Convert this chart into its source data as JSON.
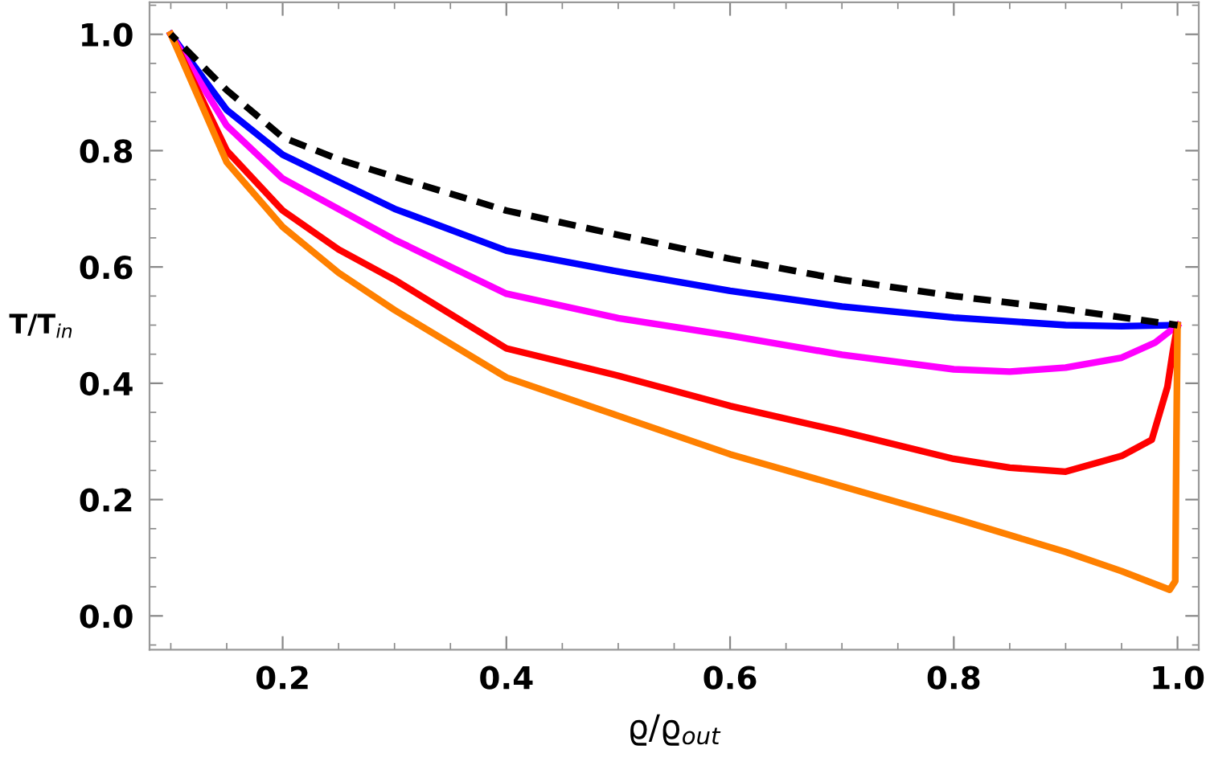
{
  "chart_data": {
    "type": "line",
    "xlabel": "ϱ/ϱ$_{out}$",
    "ylabel": "T/T$_{in}$",
    "xlim": [
      0.081,
      1.019
    ],
    "ylim": [
      -0.058,
      1.055
    ],
    "xticks": [
      0.2,
      0.4,
      0.6,
      0.8,
      {
        "value": 1,
        "label": "1.0"
      }
    ],
    "yticks": [
      {
        "value": 0,
        "label": "0.0"
      },
      0.2,
      0.4,
      0.6,
      0.8,
      {
        "value": 1,
        "label": "1.0"
      }
    ],
    "grid": false,
    "series": [
      {
        "color": "#000000",
        "line_style": "dashed",
        "x": [
          0.1,
          0.15,
          0.2,
          0.25,
          0.3,
          0.4,
          0.5,
          0.6,
          0.7,
          0.8,
          0.9,
          1.0
        ],
        "values": [
          1.0,
          0.904,
          0.823,
          0.785,
          0.755,
          0.697,
          0.655,
          0.614,
          0.578,
          0.55,
          0.527,
          0.5
        ]
      },
      {
        "color": "#0000ff",
        "x": [
          0.1,
          0.15,
          0.2,
          0.3,
          0.4,
          0.5,
          0.6,
          0.7,
          0.8,
          0.9,
          0.95,
          1.0
        ],
        "values": [
          1.0,
          0.87,
          0.793,
          0.7,
          0.628,
          0.592,
          0.559,
          0.532,
          0.513,
          0.5,
          0.498,
          0.5
        ]
      },
      {
        "color": "#ff00ff",
        "x": [
          0.1,
          0.15,
          0.2,
          0.3,
          0.4,
          0.5,
          0.6,
          0.7,
          0.8,
          0.85,
          0.9,
          0.95,
          0.98,
          1.0
        ],
        "values": [
          1.0,
          0.843,
          0.752,
          0.647,
          0.554,
          0.512,
          0.482,
          0.449,
          0.424,
          0.42,
          0.427,
          0.444,
          0.47,
          0.5
        ]
      },
      {
        "color": "#ff0000",
        "x": [
          0.1,
          0.15,
          0.2,
          0.25,
          0.3,
          0.4,
          0.5,
          0.6,
          0.7,
          0.8,
          0.85,
          0.9,
          0.95,
          0.977,
          0.991,
          0.996,
          1.0
        ],
        "values": [
          1.0,
          0.8,
          0.697,
          0.63,
          0.578,
          0.46,
          0.413,
          0.361,
          0.317,
          0.27,
          0.255,
          0.248,
          0.275,
          0.303,
          0.394,
          0.457,
          0.5
        ]
      },
      {
        "color": "#ff8000",
        "x": [
          0.1,
          0.15,
          0.2,
          0.25,
          0.3,
          0.4,
          0.5,
          0.6,
          0.7,
          0.8,
          0.9,
          0.95,
          0.993,
          0.998,
          0.999,
          1.0
        ],
        "values": [
          1.0,
          0.78,
          0.669,
          0.59,
          0.526,
          0.41,
          0.344,
          0.278,
          0.223,
          0.168,
          0.11,
          0.077,
          0.045,
          0.06,
          0.3,
          0.5
        ]
      }
    ]
  }
}
